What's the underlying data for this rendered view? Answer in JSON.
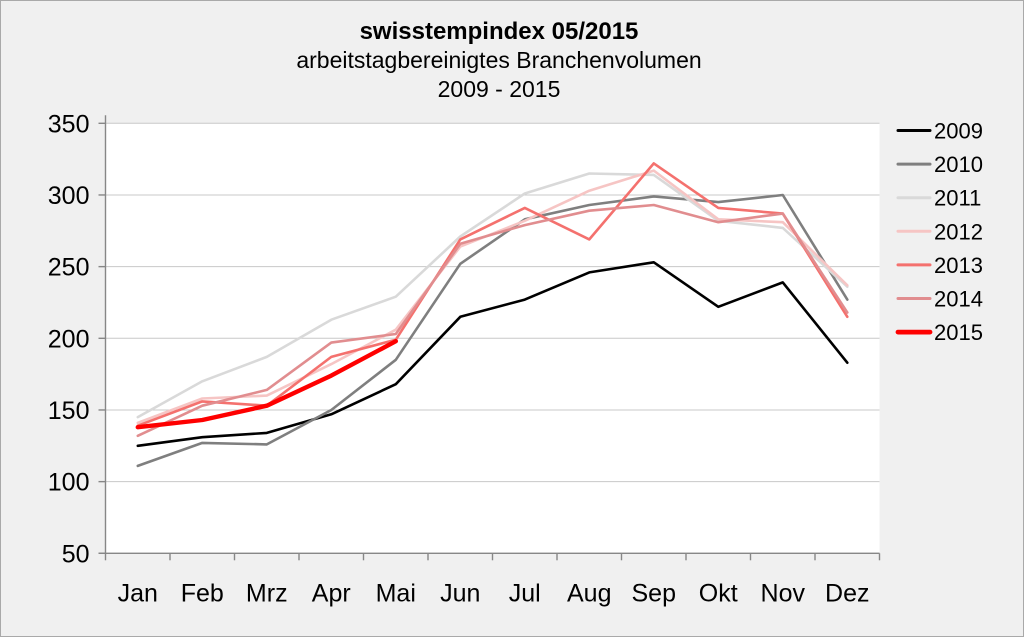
{
  "window": {
    "background": "#f0f0f0",
    "border_color": "#a9a9a9",
    "plot_background": "#ffffff",
    "grid_color": "#c8c8c8",
    "axis_color": "#878787"
  },
  "chart_data": {
    "type": "line",
    "title": "swisstempindex 05/2015",
    "subtitle": "arbeitstagbereinigtes Branchenvolumen",
    "period": "2009 - 2015",
    "categories": [
      "Jan",
      "Feb",
      "Mrz",
      "Apr",
      "Mai",
      "Jun",
      "Jul",
      "Aug",
      "Sep",
      "Okt",
      "Nov",
      "Dez"
    ],
    "ylim": [
      50,
      350
    ],
    "yticks": [
      350,
      300,
      250,
      200,
      150,
      100,
      50
    ],
    "grid": true,
    "legend_position": "right",
    "series": [
      {
        "name": "2009",
        "color": "#000000",
        "width": 2.6,
        "values": [
          125,
          131,
          134,
          147,
          168,
          215,
          227,
          246,
          253,
          222,
          239,
          183
        ]
      },
      {
        "name": "2010",
        "color": "#7f7f7f",
        "width": 2.6,
        "values": [
          111,
          127,
          126,
          150,
          185,
          252,
          283,
          293,
          299,
          295,
          300,
          227
        ]
      },
      {
        "name": "2011",
        "color": "#d9d9d9",
        "width": 2.6,
        "values": [
          145,
          170,
          187,
          213,
          229,
          271,
          301,
          315,
          314,
          282,
          277,
          236
        ]
      },
      {
        "name": "2012",
        "color": "#f6c5c4",
        "width": 2.6,
        "values": [
          141,
          158,
          160,
          182,
          206,
          264,
          282,
          303,
          317,
          283,
          281,
          237
        ]
      },
      {
        "name": "2013",
        "color": "#f4716e",
        "width": 2.6,
        "values": [
          139,
          156,
          153,
          187,
          199,
          269,
          291,
          269,
          322,
          291,
          287,
          215
        ]
      },
      {
        "name": "2014",
        "color": "#e18d8f",
        "width": 2.6,
        "values": [
          132,
          153,
          164,
          197,
          203,
          266,
          279,
          289,
          293,
          281,
          287,
          218
        ]
      },
      {
        "name": "2015",
        "color": "#fe0000",
        "width": 4.4,
        "values": [
          138,
          143,
          153,
          174,
          198
        ]
      }
    ]
  }
}
